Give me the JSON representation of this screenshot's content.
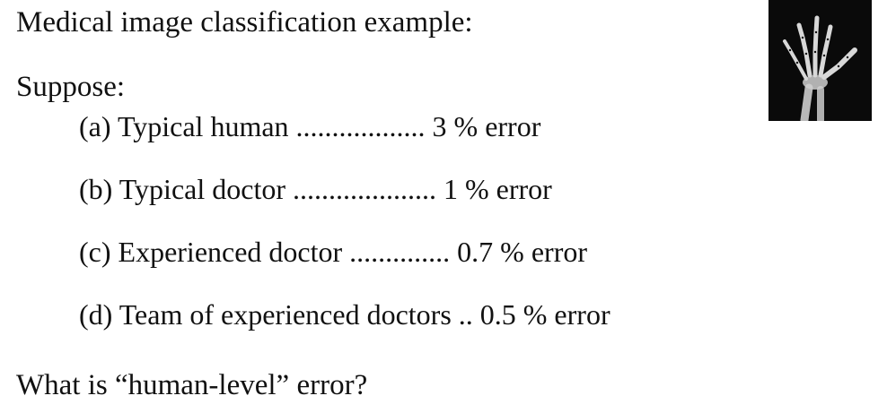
{
  "slide": {
    "title": "Medical image classification example:",
    "intro": "Suppose:",
    "items": [
      {
        "text": "(a) Typical human .................. 3 % error"
      },
      {
        "text": "(b) Typical doctor .................... 1 % error"
      },
      {
        "text": "(c) Experienced doctor .............. 0.7 % error"
      },
      {
        "text": "(d) Team of experienced doctors .. 0.5 % error"
      }
    ],
    "question": "What is “human-level” error?"
  },
  "image": {
    "subject": "hand x-ray",
    "background_color": "#0a0a0a",
    "bone_color": "#d8d8d8"
  }
}
